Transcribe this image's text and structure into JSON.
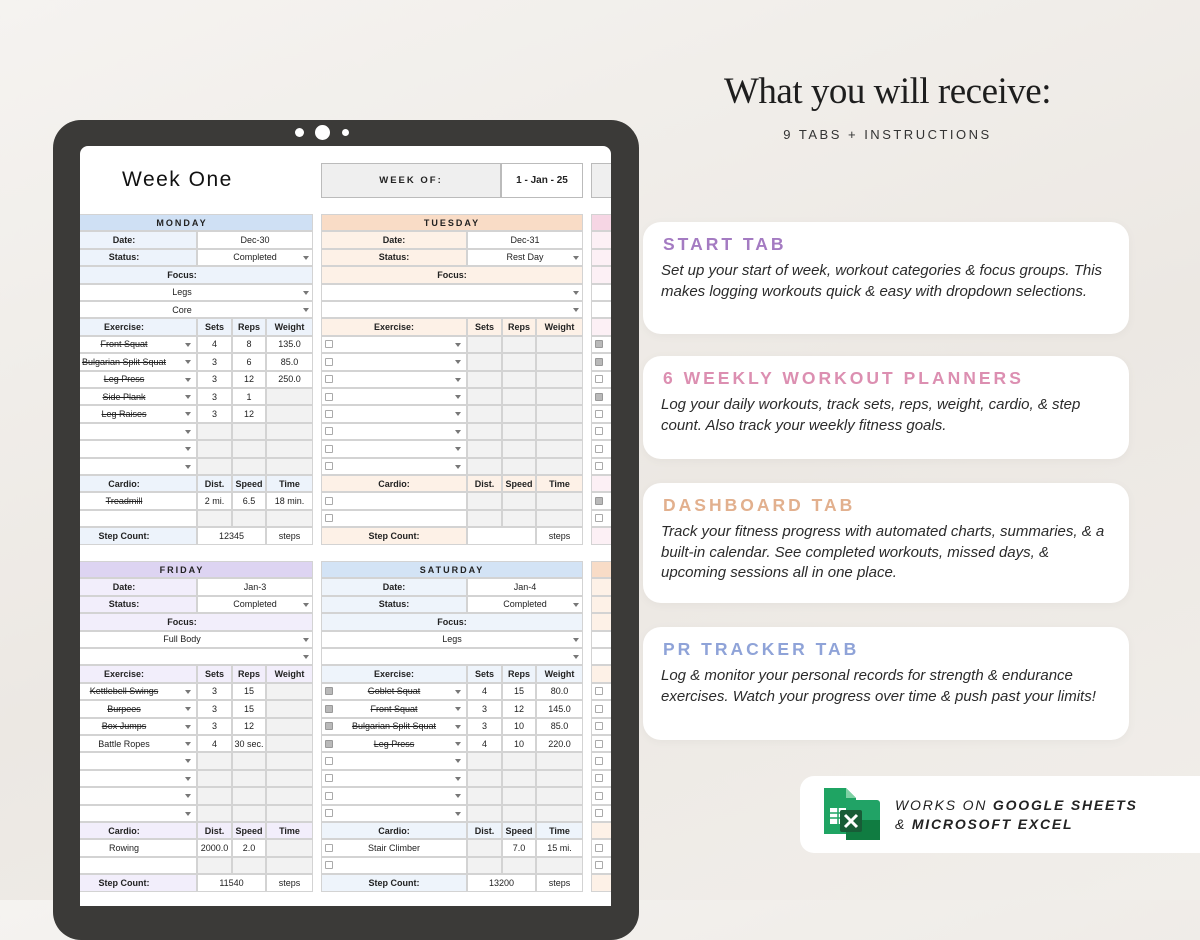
{
  "header": {
    "title": "What you will receive:",
    "subtitle": "9 TABS + INSTRUCTIONS"
  },
  "features": [
    {
      "title": "START TAB",
      "color": "#a47bc2",
      "text": "Set up your start of week, workout categories & focus groups. This makes logging workouts quick & easy with dropdown selections."
    },
    {
      "title": "6 WEEKLY WORKOUT PLANNERS",
      "color": "#dc8fb1",
      "text": "Log your daily workouts, track sets, reps, weight, cardio, & step count. Also track your weekly fitness goals."
    },
    {
      "title": "DASHBOARD TAB",
      "color": "#e2b08e",
      "text": "Track your fitness progress with automated charts, summaries, & a built-in calendar. See completed workouts, missed days, & upcoming sessions all in one place."
    },
    {
      "title": "PR TRACKER TAB",
      "color": "#8fa3d8",
      "text": "Log & monitor your personal records for strength & endurance exercises. Watch your progress over time & push past your limits!"
    }
  ],
  "badge": {
    "prefix": "WORKS ON",
    "app1": "GOOGLE SHEETS",
    "joiner": "&",
    "app2": "MICROSOFT EXCEL"
  },
  "sheet": {
    "title": "Week One",
    "week_of_label": "WEEK OF:",
    "week_of": "1 - Jan - 25",
    "labels": {
      "date": "Date:",
      "status": "Status:",
      "focus": "Focus:",
      "exercise": "Exercise:",
      "sets": "Sets",
      "reps": "Reps",
      "weight": "Weight",
      "cardio": "Cardio:",
      "dist": "Dist.",
      "speed": "Speed",
      "time": "Time",
      "step_count": "Step Count:",
      "steps": "steps"
    },
    "days": [
      {
        "name": "MONDAY",
        "color": "#cfe0f4",
        "light": "#edf3fb",
        "date": "Dec-30",
        "status": "Completed",
        "focus": [
          "Legs",
          "Core"
        ],
        "exercises": [
          {
            "name": "Front Squat",
            "sets": "4",
            "reps": "8",
            "weight": "135.0",
            "done": true
          },
          {
            "name": "Bulgarian Split Squat",
            "sets": "3",
            "reps": "6",
            "weight": "85.0",
            "done": true
          },
          {
            "name": "Leg Press",
            "sets": "3",
            "reps": "12",
            "weight": "250.0",
            "done": true
          },
          {
            "name": "Side Plank",
            "sets": "3",
            "reps": "1",
            "done": true
          },
          {
            "name": "Leg Raises",
            "sets": "3",
            "reps": "12",
            "done": true
          }
        ],
        "cardio": [
          {
            "name": "Treadmill",
            "dist": "2 mi.",
            "speed": "6.5",
            "time": "18 min.",
            "done": true
          }
        ],
        "steps": "12345"
      },
      {
        "name": "TUESDAY",
        "color": "#f9dcc6",
        "light": "#fdf1e7",
        "date": "Dec-31",
        "status": "Rest Day",
        "focus": [],
        "exercises": [],
        "cardio": []
      },
      {
        "name": "FRIDAY",
        "color": "#ddd4f2",
        "light": "#f2eefb",
        "date": "Jan-3",
        "status": "Completed",
        "focus": [
          "Full Body"
        ],
        "exercises": [
          {
            "name": "Kettlebell Swings",
            "sets": "3",
            "reps": "15",
            "done": true
          },
          {
            "name": "Burpees",
            "sets": "3",
            "reps": "15",
            "done": true
          },
          {
            "name": "Box Jumps",
            "sets": "3",
            "reps": "12",
            "done": true
          },
          {
            "name": "Battle Ropes",
            "sets": "4",
            "reps": "30 sec.",
            "done": false
          }
        ],
        "cardio": [
          {
            "name": "Rowing",
            "dist": "2000.0",
            "speed": "2.0",
            "done": false
          }
        ],
        "steps": "11540"
      },
      {
        "name": "SATURDAY",
        "color": "#d3e3f5",
        "light": "#eef4fb",
        "date": "Jan-4",
        "status": "Completed",
        "focus": [
          "Legs"
        ],
        "exercises": [
          {
            "name": "Goblet Squat",
            "sets": "4",
            "reps": "15",
            "weight": "80.0",
            "done": true
          },
          {
            "name": "Front Squat",
            "sets": "3",
            "reps": "12",
            "weight": "145.0",
            "done": true
          },
          {
            "name": "Bulgarian Split Squat",
            "sets": "3",
            "reps": "10",
            "weight": "85.0",
            "done": true
          },
          {
            "name": "Leg Press",
            "sets": "4",
            "reps": "10",
            "weight": "220.0",
            "done": true
          }
        ],
        "cardio": [
          {
            "name": "Stair Climber",
            "speed": "7.0",
            "time": "15 mi.",
            "done": false
          }
        ],
        "steps": "13200"
      }
    ]
  }
}
